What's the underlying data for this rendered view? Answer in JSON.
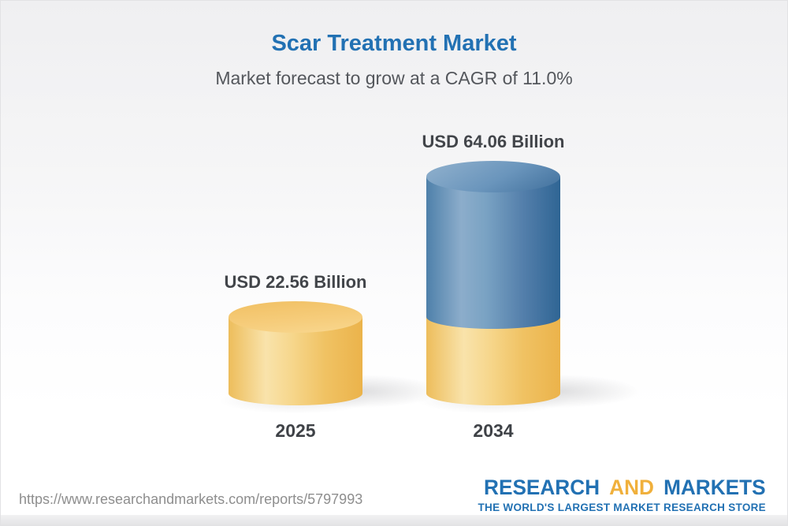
{
  "header": {
    "title": "Scar Treatment Market",
    "subtitle": "Market forecast to grow at a CAGR of 11.0%"
  },
  "chart_data": {
    "type": "bar",
    "style": "3d-cylinder",
    "categories": [
      "2025",
      "2034"
    ],
    "values": [
      22.56,
      64.06
    ],
    "value_labels": [
      "USD 22.56 Billion",
      "USD 64.06 Billion"
    ],
    "unit": "USD Billion",
    "cagr_percent": 11.0,
    "grid": false,
    "legend_position": "none",
    "bar_colors": {
      "base_gold": "#f5c873",
      "growth_blue": "#5d89b4"
    },
    "note": "2034 bar is stacked: gold base equals the 2025 value, blue segment is forecast growth"
  },
  "footer": {
    "url": "https://www.researchandmarkets.com/reports/5797993",
    "logo": {
      "word1": "RESEARCH",
      "word2": "AND",
      "word3": "MARKETS",
      "tagline": "THE WORLD'S LARGEST MARKET RESEARCH STORE",
      "blue": "#2271b3",
      "gold": "#f0b03c"
    }
  }
}
